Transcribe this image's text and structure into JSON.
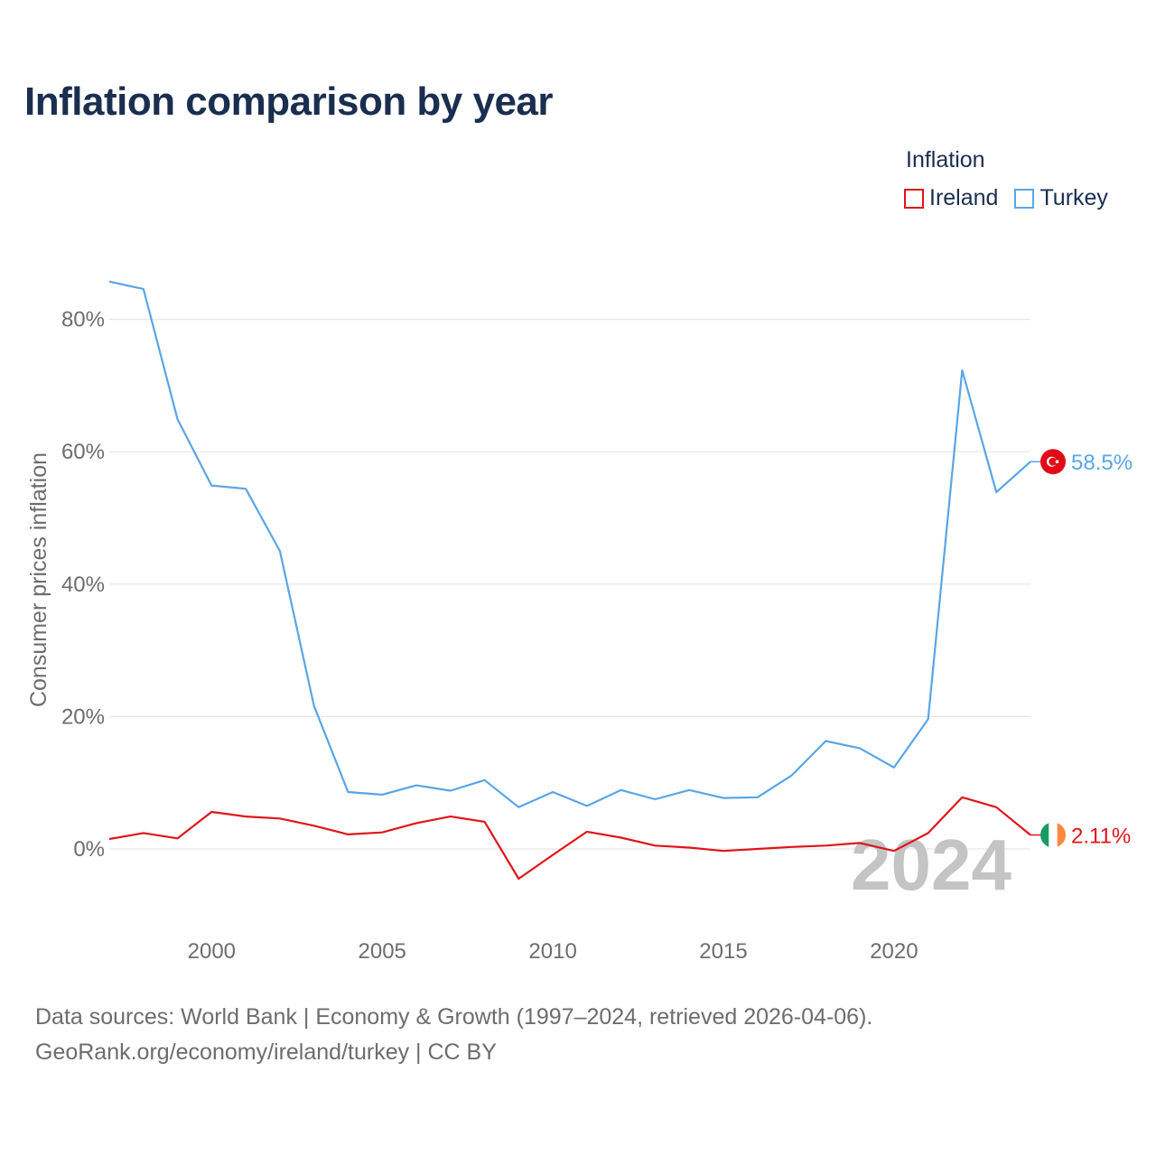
{
  "title": "Inflation comparison by year",
  "legend": {
    "title": "Inflation",
    "items": [
      {
        "label": "Ireland",
        "color": "#e0151b"
      },
      {
        "label": "Turkey",
        "color": "#5aa5e6"
      }
    ]
  },
  "watermark_year": "2024",
  "source": {
    "line1": "Data sources: World Bank | Economy & Growth (1997–2024, retrieved 2026-04-06).",
    "line2": "GeoRank.org/economy/ireland/turkey | CC BY"
  },
  "chart_data": {
    "type": "line",
    "title": "Inflation comparison by year",
    "xlabel": "",
    "ylabel": "Consumer prices inflation",
    "x": [
      1997,
      1998,
      1999,
      2000,
      2001,
      2002,
      2003,
      2004,
      2005,
      2006,
      2007,
      2008,
      2009,
      2010,
      2011,
      2012,
      2013,
      2014,
      2015,
      2016,
      2017,
      2018,
      2019,
      2020,
      2021,
      2022,
      2023,
      2024
    ],
    "xlim": [
      1997,
      2024
    ],
    "ylim": [
      -13,
      88
    ],
    "xticks": [
      2000,
      2005,
      2010,
      2015,
      2020
    ],
    "yticks": [
      0,
      20,
      40,
      60,
      80
    ],
    "ytick_labels": [
      "0%",
      "20%",
      "40%",
      "60%",
      "80%"
    ],
    "grid": true,
    "series": [
      {
        "name": "Turkey",
        "color": "#5aa5e6",
        "values": [
          85.7,
          84.6,
          64.9,
          54.9,
          54.4,
          45.0,
          21.6,
          8.6,
          8.2,
          9.6,
          8.8,
          10.4,
          6.3,
          8.6,
          6.5,
          8.9,
          7.5,
          8.9,
          7.7,
          7.8,
          11.1,
          16.3,
          15.2,
          12.3,
          19.6,
          72.3,
          53.9,
          58.5
        ],
        "end_label": "58.5%",
        "flag": "turkey-flag"
      },
      {
        "name": "Ireland",
        "color": "#e0151b",
        "values": [
          1.5,
          2.4,
          1.6,
          5.6,
          4.9,
          4.6,
          3.5,
          2.2,
          2.5,
          3.9,
          4.9,
          4.1,
          -4.5,
          -0.9,
          2.6,
          1.7,
          0.5,
          0.2,
          -0.3,
          0.0,
          0.3,
          0.5,
          0.9,
          -0.3,
          2.4,
          7.8,
          6.3,
          2.11
        ],
        "end_label": "2.11%",
        "flag": "ireland-flag"
      }
    ]
  }
}
